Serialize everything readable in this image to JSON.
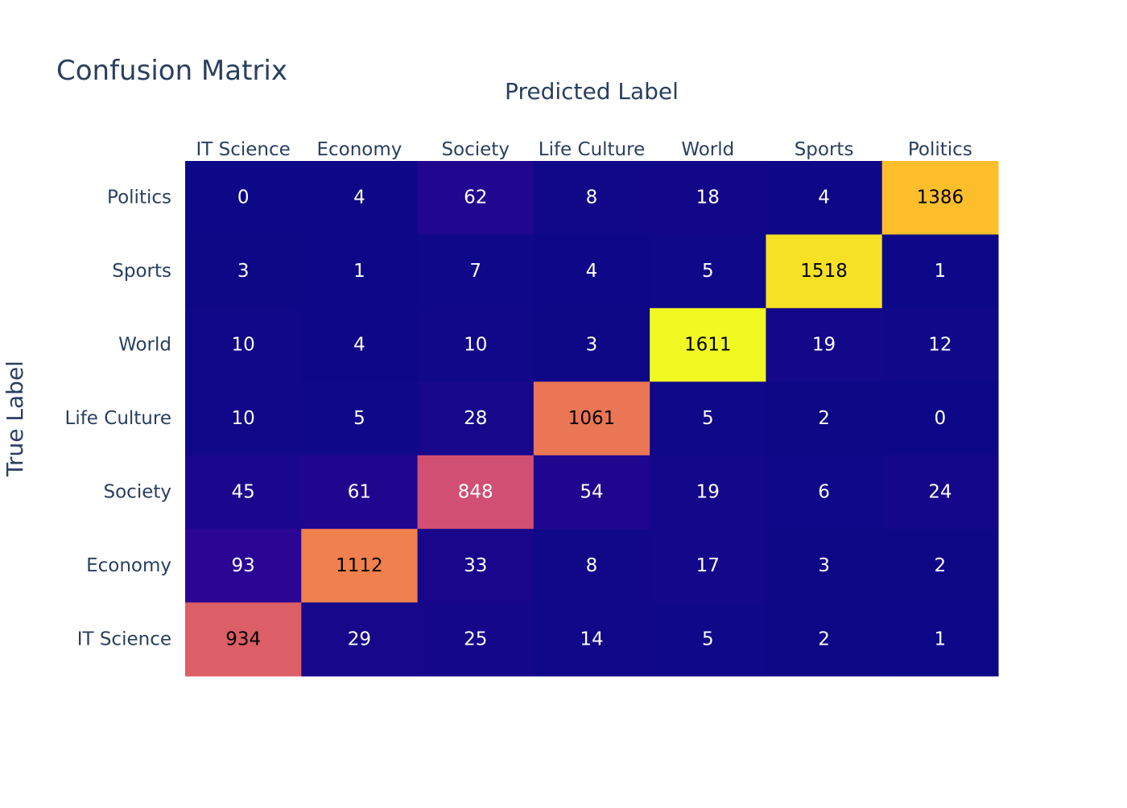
{
  "chart_data": {
    "type": "heatmap",
    "title": "Confusion Matrix",
    "xlabel": "Predicted Label",
    "ylabel": "True Label",
    "x_categories": [
      "IT Science",
      "Economy",
      "Society",
      "Life Culture",
      "World",
      "Sports",
      "Politics"
    ],
    "y_categories_top_to_bottom": [
      "Politics",
      "Sports",
      "World",
      "Life Culture",
      "Society",
      "Economy",
      "IT Science"
    ],
    "values": [
      [
        0,
        4,
        62,
        8,
        18,
        4,
        1386
      ],
      [
        3,
        1,
        7,
        4,
        5,
        1518,
        1
      ],
      [
        10,
        4,
        10,
        3,
        1611,
        19,
        12
      ],
      [
        10,
        5,
        28,
        1061,
        5,
        2,
        0
      ],
      [
        45,
        61,
        848,
        54,
        19,
        6,
        24
      ],
      [
        93,
        1112,
        33,
        8,
        17,
        3,
        2
      ],
      [
        934,
        29,
        25,
        14,
        5,
        2,
        1
      ]
    ],
    "colorscale": "plasma",
    "x_axis_position": "top",
    "grid": false,
    "legend": "none"
  }
}
